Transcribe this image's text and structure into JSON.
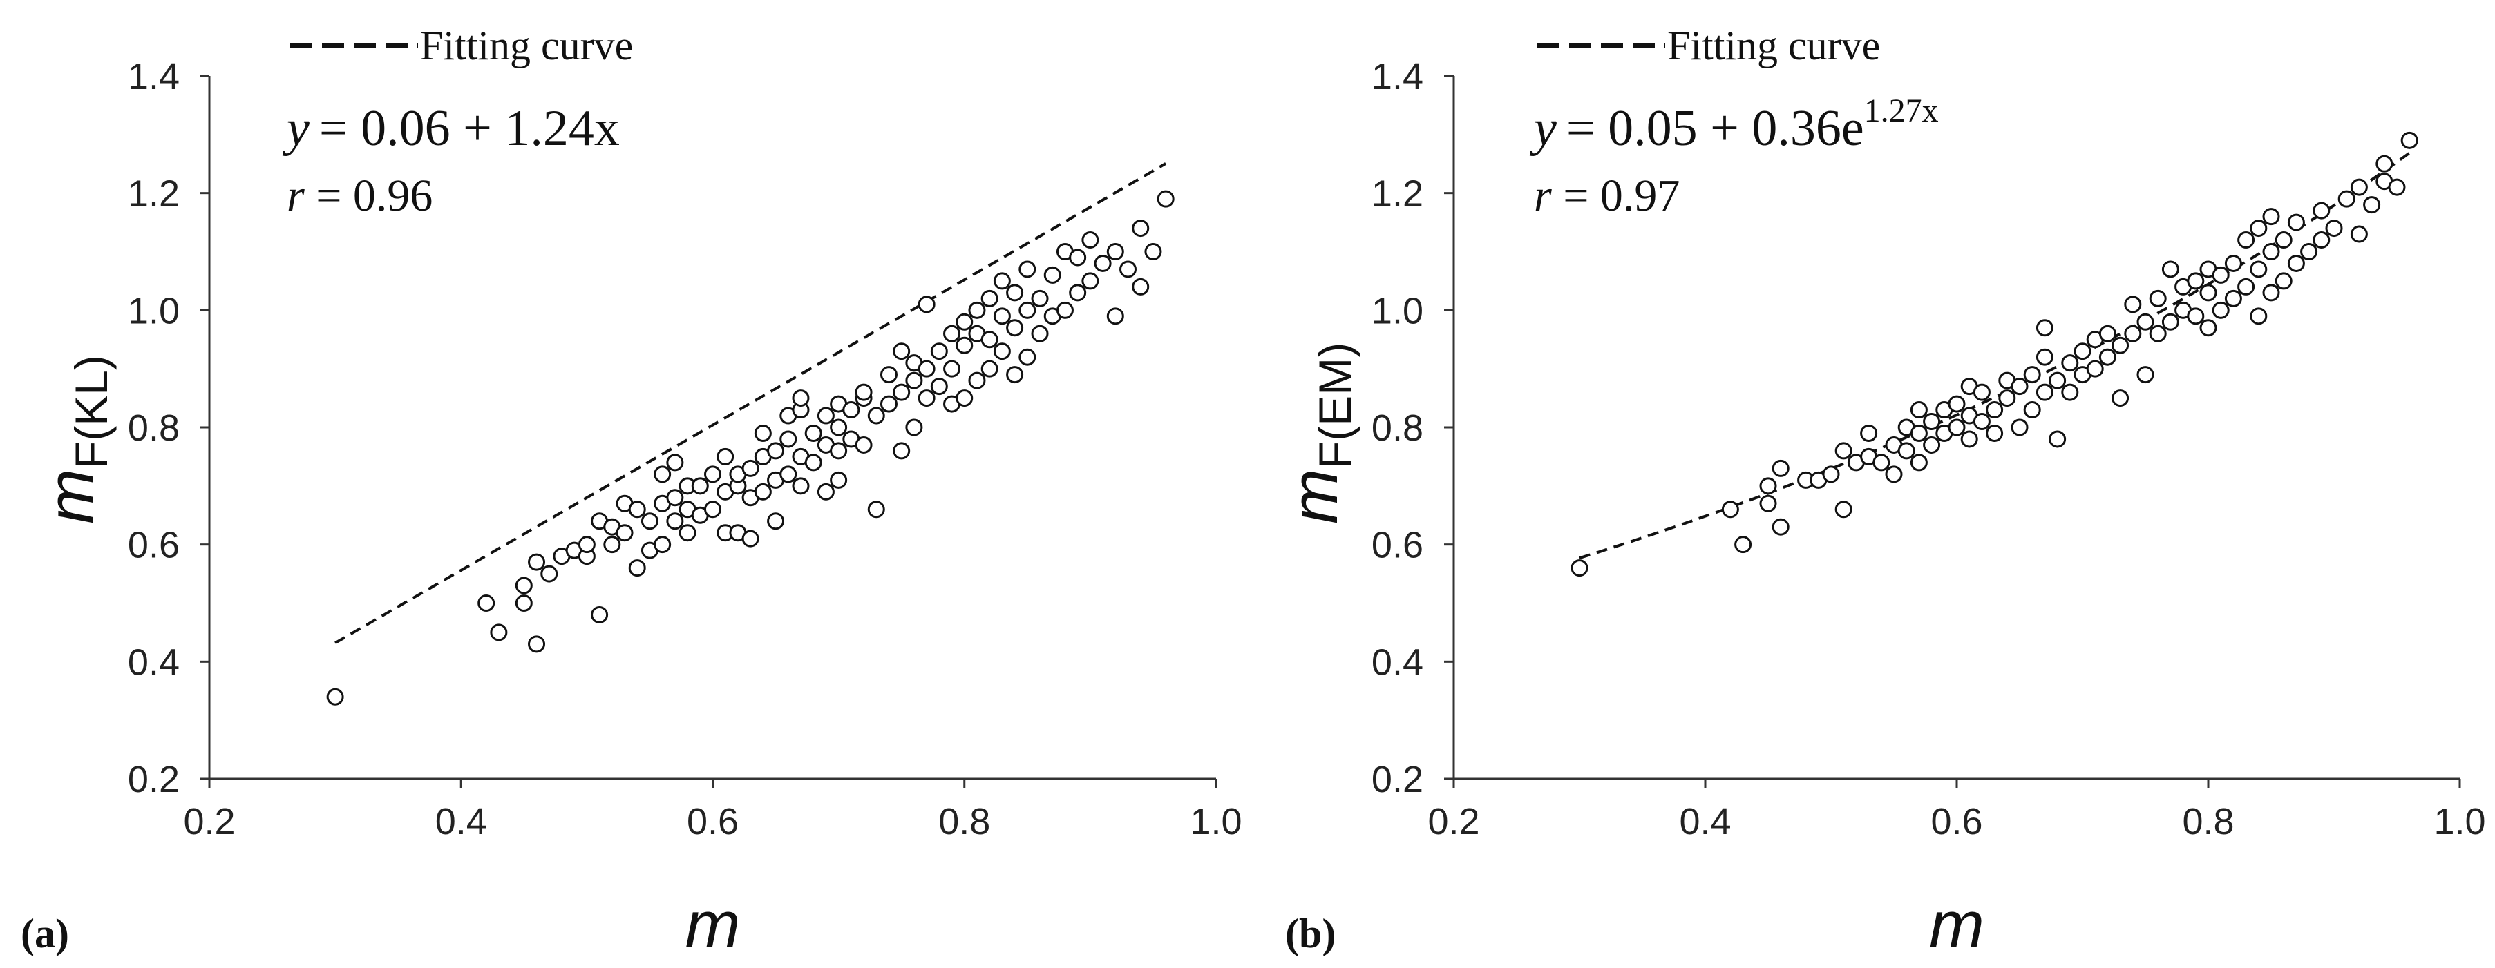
{
  "chart_data": [
    {
      "panel_label": "(a)",
      "type": "scatter",
      "xlabel": "m",
      "ylabel": "m",
      "ylabel_sub": "F(KL)",
      "xlim": [
        0.2,
        1.0
      ],
      "ylim": [
        0.2,
        1.4
      ],
      "xticks": [
        "0.2",
        "0.4",
        "0.6",
        "0.8",
        "1.0"
      ],
      "yticks": [
        "0.2",
        "0.4",
        "0.6",
        "0.8",
        "1.0",
        "1.2",
        "1.4"
      ],
      "grid": false,
      "legend": {
        "label": "Fitting curve",
        "position": "top-left"
      },
      "equation": {
        "lhs": "y",
        "rhs": "= 0.06 + 1.24x"
      },
      "r_text": {
        "sym": "r",
        "rest": " = 0.96"
      },
      "fit": {
        "model": "linear",
        "a": 0.06,
        "b": 1.24,
        "x_range": [
          0.3,
          0.96
        ]
      },
      "points": [
        [
          0.3,
          0.34
        ],
        [
          0.42,
          0.5
        ],
        [
          0.43,
          0.45
        ],
        [
          0.45,
          0.5
        ],
        [
          0.45,
          0.53
        ],
        [
          0.46,
          0.43
        ],
        [
          0.46,
          0.57
        ],
        [
          0.47,
          0.55
        ],
        [
          0.48,
          0.58
        ],
        [
          0.49,
          0.59
        ],
        [
          0.5,
          0.58
        ],
        [
          0.5,
          0.6
        ],
        [
          0.51,
          0.48
        ],
        [
          0.51,
          0.64
        ],
        [
          0.52,
          0.6
        ],
        [
          0.52,
          0.63
        ],
        [
          0.53,
          0.62
        ],
        [
          0.53,
          0.67
        ],
        [
          0.54,
          0.56
        ],
        [
          0.54,
          0.66
        ],
        [
          0.55,
          0.59
        ],
        [
          0.55,
          0.64
        ],
        [
          0.56,
          0.6
        ],
        [
          0.56,
          0.67
        ],
        [
          0.56,
          0.72
        ],
        [
          0.57,
          0.64
        ],
        [
          0.57,
          0.68
        ],
        [
          0.57,
          0.74
        ],
        [
          0.58,
          0.62
        ],
        [
          0.58,
          0.66
        ],
        [
          0.58,
          0.7
        ],
        [
          0.59,
          0.65
        ],
        [
          0.59,
          0.7
        ],
        [
          0.6,
          0.66
        ],
        [
          0.6,
          0.72
        ],
        [
          0.61,
          0.62
        ],
        [
          0.61,
          0.69
        ],
        [
          0.61,
          0.75
        ],
        [
          0.62,
          0.62
        ],
        [
          0.62,
          0.7
        ],
        [
          0.62,
          0.72
        ],
        [
          0.63,
          0.61
        ],
        [
          0.63,
          0.68
        ],
        [
          0.63,
          0.73
        ],
        [
          0.64,
          0.69
        ],
        [
          0.64,
          0.75
        ],
        [
          0.64,
          0.79
        ],
        [
          0.65,
          0.64
        ],
        [
          0.65,
          0.71
        ],
        [
          0.65,
          0.76
        ],
        [
          0.66,
          0.72
        ],
        [
          0.66,
          0.78
        ],
        [
          0.66,
          0.82
        ],
        [
          0.67,
          0.7
        ],
        [
          0.67,
          0.75
        ],
        [
          0.67,
          0.83
        ],
        [
          0.67,
          0.85
        ],
        [
          0.68,
          0.74
        ],
        [
          0.68,
          0.79
        ],
        [
          0.69,
          0.69
        ],
        [
          0.69,
          0.77
        ],
        [
          0.69,
          0.82
        ],
        [
          0.7,
          0.71
        ],
        [
          0.7,
          0.76
        ],
        [
          0.7,
          0.8
        ],
        [
          0.7,
          0.84
        ],
        [
          0.71,
          0.78
        ],
        [
          0.71,
          0.83
        ],
        [
          0.72,
          0.77
        ],
        [
          0.72,
          0.85
        ],
        [
          0.72,
          0.86
        ],
        [
          0.73,
          0.66
        ],
        [
          0.73,
          0.82
        ],
        [
          0.74,
          0.84
        ],
        [
          0.74,
          0.89
        ],
        [
          0.75,
          0.76
        ],
        [
          0.75,
          0.86
        ],
        [
          0.75,
          0.93
        ],
        [
          0.76,
          0.8
        ],
        [
          0.76,
          0.88
        ],
        [
          0.76,
          0.91
        ],
        [
          0.77,
          0.85
        ],
        [
          0.77,
          0.9
        ],
        [
          0.77,
          1.01
        ],
        [
          0.78,
          0.87
        ],
        [
          0.78,
          0.93
        ],
        [
          0.79,
          0.84
        ],
        [
          0.79,
          0.9
        ],
        [
          0.79,
          0.96
        ],
        [
          0.8,
          0.85
        ],
        [
          0.8,
          0.94
        ],
        [
          0.8,
          0.98
        ],
        [
          0.81,
          0.88
        ],
        [
          0.81,
          0.96
        ],
        [
          0.81,
          1.0
        ],
        [
          0.82,
          0.9
        ],
        [
          0.82,
          0.95
        ],
        [
          0.82,
          1.02
        ],
        [
          0.83,
          0.93
        ],
        [
          0.83,
          0.99
        ],
        [
          0.83,
          1.05
        ],
        [
          0.84,
          0.89
        ],
        [
          0.84,
          0.97
        ],
        [
          0.84,
          1.03
        ],
        [
          0.85,
          0.92
        ],
        [
          0.85,
          1.0
        ],
        [
          0.85,
          1.07
        ],
        [
          0.86,
          0.96
        ],
        [
          0.86,
          1.02
        ],
        [
          0.87,
          0.99
        ],
        [
          0.87,
          1.06
        ],
        [
          0.88,
          1.0
        ],
        [
          0.88,
          1.1
        ],
        [
          0.89,
          1.03
        ],
        [
          0.89,
          1.09
        ],
        [
          0.9,
          1.05
        ],
        [
          0.9,
          1.12
        ],
        [
          0.91,
          1.08
        ],
        [
          0.92,
          0.99
        ],
        [
          0.92,
          1.1
        ],
        [
          0.93,
          1.07
        ],
        [
          0.94,
          1.04
        ],
        [
          0.94,
          1.14
        ],
        [
          0.95,
          1.1
        ],
        [
          0.96,
          1.19
        ]
      ]
    },
    {
      "panel_label": "(b)",
      "type": "scatter",
      "xlabel": "m",
      "ylabel": "m",
      "ylabel_sub": "F(EM)",
      "xlim": [
        0.2,
        1.0
      ],
      "ylim": [
        0.2,
        1.4
      ],
      "xticks": [
        "0.2",
        "0.4",
        "0.6",
        "0.8",
        "1.0"
      ],
      "yticks": [
        "0.2",
        "0.4",
        "0.6",
        "0.8",
        "1.0",
        "1.2",
        "1.4"
      ],
      "grid": false,
      "legend": {
        "label": "Fitting curve",
        "position": "top-left"
      },
      "equation": {
        "lhs": "y",
        "rhs": "= 0.05 + 0.36e",
        "sup": "1.27x"
      },
      "r_text": {
        "sym": "r",
        "rest": " = 0.97"
      },
      "fit": {
        "model": "exponential",
        "a": 0.05,
        "b": 0.36,
        "c": 1.27,
        "x_range": [
          0.3,
          0.96
        ]
      },
      "points": [
        [
          0.3,
          0.56
        ],
        [
          0.42,
          0.66
        ],
        [
          0.43,
          0.6
        ],
        [
          0.45,
          0.67
        ],
        [
          0.45,
          0.7
        ],
        [
          0.46,
          0.63
        ],
        [
          0.46,
          0.73
        ],
        [
          0.48,
          0.71
        ],
        [
          0.49,
          0.71
        ],
        [
          0.5,
          0.72
        ],
        [
          0.51,
          0.66
        ],
        [
          0.51,
          0.76
        ],
        [
          0.52,
          0.74
        ],
        [
          0.53,
          0.75
        ],
        [
          0.53,
          0.79
        ],
        [
          0.54,
          0.74
        ],
        [
          0.55,
          0.72
        ],
        [
          0.55,
          0.77
        ],
        [
          0.56,
          0.76
        ],
        [
          0.56,
          0.8
        ],
        [
          0.57,
          0.74
        ],
        [
          0.57,
          0.79
        ],
        [
          0.57,
          0.83
        ],
        [
          0.58,
          0.77
        ],
        [
          0.58,
          0.81
        ],
        [
          0.59,
          0.79
        ],
        [
          0.59,
          0.83
        ],
        [
          0.6,
          0.8
        ],
        [
          0.6,
          0.84
        ],
        [
          0.61,
          0.78
        ],
        [
          0.61,
          0.82
        ],
        [
          0.61,
          0.87
        ],
        [
          0.62,
          0.81
        ],
        [
          0.62,
          0.86
        ],
        [
          0.63,
          0.79
        ],
        [
          0.63,
          0.83
        ],
        [
          0.64,
          0.85
        ],
        [
          0.64,
          0.88
        ],
        [
          0.65,
          0.8
        ],
        [
          0.65,
          0.87
        ],
        [
          0.66,
          0.83
        ],
        [
          0.66,
          0.89
        ],
        [
          0.67,
          0.86
        ],
        [
          0.67,
          0.92
        ],
        [
          0.67,
          0.97
        ],
        [
          0.68,
          0.78
        ],
        [
          0.68,
          0.88
        ],
        [
          0.69,
          0.86
        ],
        [
          0.69,
          0.91
        ],
        [
          0.7,
          0.89
        ],
        [
          0.7,
          0.93
        ],
        [
          0.71,
          0.9
        ],
        [
          0.71,
          0.95
        ],
        [
          0.72,
          0.92
        ],
        [
          0.72,
          0.96
        ],
        [
          0.73,
          0.85
        ],
        [
          0.73,
          0.94
        ],
        [
          0.74,
          0.96
        ],
        [
          0.74,
          1.01
        ],
        [
          0.75,
          0.89
        ],
        [
          0.75,
          0.98
        ],
        [
          0.76,
          0.96
        ],
        [
          0.76,
          1.02
        ],
        [
          0.77,
          0.98
        ],
        [
          0.77,
          1.07
        ],
        [
          0.78,
          1.0
        ],
        [
          0.78,
          1.04
        ],
        [
          0.79,
          0.99
        ],
        [
          0.79,
          1.05
        ],
        [
          0.8,
          0.97
        ],
        [
          0.8,
          1.03
        ],
        [
          0.8,
          1.07
        ],
        [
          0.81,
          1.0
        ],
        [
          0.81,
          1.06
        ],
        [
          0.82,
          1.02
        ],
        [
          0.82,
          1.08
        ],
        [
          0.83,
          1.04
        ],
        [
          0.83,
          1.12
        ],
        [
          0.84,
          0.99
        ],
        [
          0.84,
          1.07
        ],
        [
          0.84,
          1.14
        ],
        [
          0.85,
          1.03
        ],
        [
          0.85,
          1.1
        ],
        [
          0.85,
          1.16
        ],
        [
          0.86,
          1.05
        ],
        [
          0.86,
          1.12
        ],
        [
          0.87,
          1.08
        ],
        [
          0.87,
          1.15
        ],
        [
          0.88,
          1.1
        ],
        [
          0.89,
          1.12
        ],
        [
          0.89,
          1.17
        ],
        [
          0.9,
          1.14
        ],
        [
          0.91,
          1.19
        ],
        [
          0.92,
          1.13
        ],
        [
          0.92,
          1.21
        ],
        [
          0.93,
          1.18
        ],
        [
          0.94,
          1.22
        ],
        [
          0.94,
          1.25
        ],
        [
          0.95,
          1.21
        ],
        [
          0.96,
          1.29
        ]
      ]
    }
  ]
}
